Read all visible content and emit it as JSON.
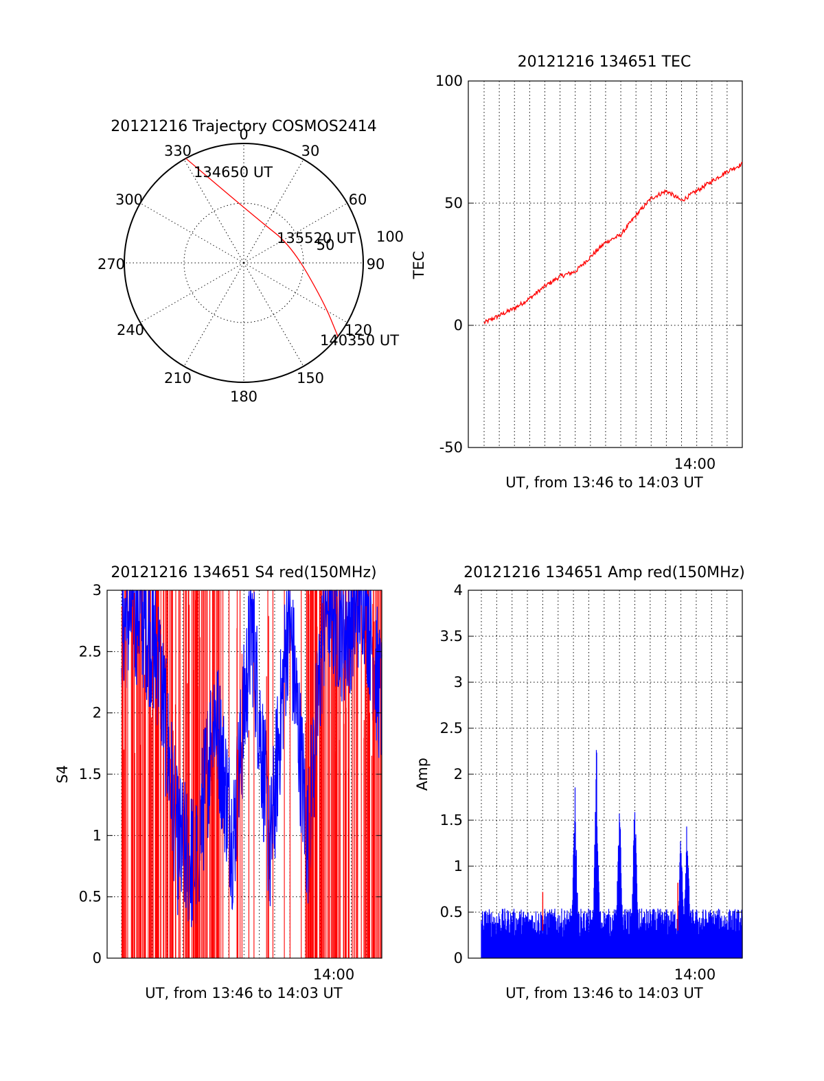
{
  "chart_data": [
    {
      "id": "trajectory",
      "type": "polar",
      "title": "20121216 Trajectory COSMOS2414",
      "azimuth_labels": [
        "0",
        "30",
        "60",
        "90",
        "120",
        "150",
        "180",
        "210",
        "240",
        "270",
        "300",
        "330"
      ],
      "ring_labels": [
        "50",
        "100"
      ],
      "points": [
        {
          "az": 331,
          "zen": 90,
          "label": "134650 UT"
        },
        {
          "az": 20,
          "zen": 34
        },
        {
          "az": 70,
          "zen": 38,
          "label": "135520 UT"
        },
        {
          "az": 116,
          "zen": 67
        },
        {
          "az": 128,
          "zen": 90,
          "label": "140350 UT"
        }
      ],
      "color": "#ff0000"
    },
    {
      "id": "tec",
      "type": "line",
      "title": "20121216 134651 TEC",
      "ylabel": "TEC",
      "xlabel": "UT, from 13:46 to 14:03 UT",
      "ylim": [
        -50,
        100
      ],
      "yticks": [
        "100",
        "50",
        "0",
        "-50"
      ],
      "xtick_label": "14:00",
      "xlim_min": [
        0,
        17
      ],
      "color": "#ff0000",
      "x": [
        0,
        1,
        2,
        3,
        4,
        5,
        6,
        7,
        8,
        9,
        10,
        11,
        12,
        13,
        14,
        15,
        16,
        17
      ],
      "y": [
        1,
        4,
        7,
        11,
        16,
        20,
        22,
        28,
        34,
        37,
        45,
        52,
        55,
        51,
        55,
        59,
        63,
        66
      ]
    },
    {
      "id": "s4",
      "type": "line",
      "title": "20121216 134651 S4 red(150MHz)",
      "ylabel": "S4",
      "xlabel": "UT, from 13:46 to 14:03 UT",
      "ylim": [
        0,
        3
      ],
      "yticks": [
        "3",
        "2.5",
        "2",
        "1.5",
        "1",
        "0.5",
        "0"
      ],
      "xtick_label": "14:00",
      "xlim_min": [
        0,
        17
      ],
      "series": [
        {
          "color": "#ff0000",
          "x": [
            0,
            1,
            2,
            3,
            4,
            5,
            6,
            7,
            8,
            9,
            10,
            11,
            12,
            13,
            14,
            15,
            16,
            17
          ],
          "y": [
            3,
            0,
            3,
            0,
            3,
            0,
            3,
            0,
            3,
            0,
            3,
            0,
            3,
            0,
            3,
            0,
            3,
            0
          ]
        },
        {
          "color": "#0000ff",
          "x": [
            0,
            2,
            4,
            6,
            7,
            8,
            9,
            10,
            11,
            12,
            13,
            14,
            15,
            16,
            17
          ],
          "y": [
            2.5,
            2.6,
            2.2,
            0.7,
            0.5,
            1.8,
            0.7,
            2.5,
            0.6,
            2.6,
            0.7,
            2.7,
            2.4,
            2.8,
            1.8
          ]
        }
      ]
    },
    {
      "id": "amp",
      "type": "line",
      "title": "20121216 134651 Amp red(150MHz)",
      "ylabel": "Amp",
      "xlabel": "UT, from 13:46 to 14:03 UT",
      "ylim": [
        0,
        4
      ],
      "yticks": [
        "4",
        "3.5",
        "3",
        "2.5",
        "2",
        "1.5",
        "1",
        "0.5",
        "0"
      ],
      "xtick_label": "14:00",
      "xlim_min": [
        0,
        17
      ],
      "color": "#0000ff",
      "peaks": [
        {
          "x": 6.1,
          "y": 1.92
        },
        {
          "x": 7.5,
          "y": 2.43
        },
        {
          "x": 9.0,
          "y": 1.83
        },
        {
          "x": 10.0,
          "y": 1.92
        },
        {
          "x": 13.0,
          "y": 1.45
        },
        {
          "x": 13.4,
          "y": 1.58
        }
      ],
      "red_marks": [
        {
          "x": 4.0,
          "y": 0.72
        },
        {
          "x": 12.8,
          "y": 0.82
        }
      ]
    }
  ]
}
